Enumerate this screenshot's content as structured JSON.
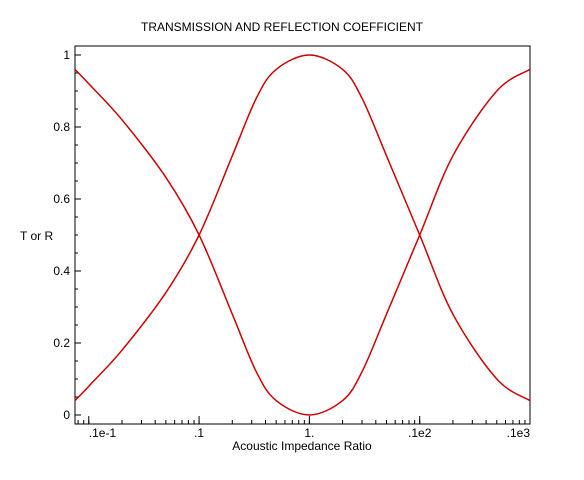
{
  "chart_data": {
    "type": "line",
    "title": "TRANSMISSION AND REFLECTION COEFFICIENT",
    "xlabel": "Acoustic Impedance Ratio",
    "ylabel": "T or R",
    "xscale": "log",
    "xlim": [
      0.075,
      1000
    ],
    "ylim": [
      0,
      1
    ],
    "grid": false,
    "x_ticks": [
      {
        "value": 0.1,
        "label": ".1e-1"
      },
      {
        "value": 1,
        "label": ".1"
      },
      {
        "value": 10,
        "label": "1."
      },
      {
        "value": 100,
        "label": ".1e2"
      },
      {
        "value": 1000,
        "label": ".1e3"
      }
    ],
    "y_ticks": [
      {
        "value": 0,
        "label": "0"
      },
      {
        "value": 0.2,
        "label": "0.2"
      },
      {
        "value": 0.4,
        "label": "0.4"
      },
      {
        "value": 0.6,
        "label": "0.6"
      },
      {
        "value": 0.8,
        "label": "0.8"
      },
      {
        "value": 1,
        "label": "1"
      }
    ],
    "series": [
      {
        "color": "#cc0000",
        "x": [
          0.075,
          0.1,
          0.2,
          0.5,
          1,
          2,
          3.3,
          5,
          10,
          20,
          30,
          50,
          100,
          200,
          500,
          1000
        ],
        "values": [
          0.04,
          0.08,
          0.18,
          0.34,
          0.5,
          0.72,
          0.88,
          0.96,
          1.0,
          0.96,
          0.88,
          0.72,
          0.5,
          0.28,
          0.1,
          0.04
        ]
      },
      {
        "color": "#cc0000",
        "x": [
          0.075,
          0.1,
          0.2,
          0.5,
          1,
          2,
          3.3,
          5,
          10,
          20,
          30,
          50,
          100,
          200,
          500,
          1000
        ],
        "values": [
          0.96,
          0.92,
          0.82,
          0.66,
          0.5,
          0.28,
          0.12,
          0.04,
          0.0,
          0.04,
          0.12,
          0.28,
          0.5,
          0.72,
          0.9,
          0.96
        ]
      }
    ]
  }
}
